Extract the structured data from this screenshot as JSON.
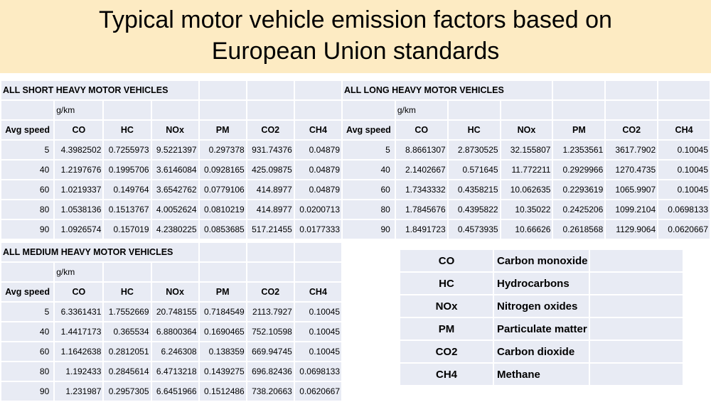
{
  "title_line1": "Typical motor vehicle emission factors based on",
  "title_line2": "European Union standards",
  "unit": "g/km",
  "columns": [
    "Avg speed",
    "CO",
    "HC",
    "NOx",
    "PM",
    "CO2",
    "CH4"
  ],
  "short": {
    "title": "ALL SHORT HEAVY MOTOR VEHICLES",
    "rows": [
      [
        "5",
        "4.3982502",
        "0.7255973",
        "9.5221397",
        "0.297378",
        "931.74376",
        "0.04879"
      ],
      [
        "40",
        "1.2197676",
        "0.1995706",
        "3.6146084",
        "0.0928165",
        "425.09875",
        "0.04879"
      ],
      [
        "60",
        "1.0219337",
        "0.149764",
        "3.6542762",
        "0.0779106",
        "414.8977",
        "0.04879"
      ],
      [
        "80",
        "1.0538136",
        "0.1513767",
        "4.0052624",
        "0.0810219",
        "414.8977",
        "0.0200713"
      ],
      [
        "90",
        "1.0926574",
        "0.157019",
        "4.2380225",
        "0.0853685",
        "517.21455",
        "0.0177333"
      ]
    ]
  },
  "long": {
    "title": "ALL LONG HEAVY MOTOR VEHICLES",
    "rows": [
      [
        "5",
        "8.8661307",
        "2.8730525",
        "32.155807",
        "1.2353561",
        "3617.7902",
        "0.10045"
      ],
      [
        "40",
        "2.1402667",
        "0.571645",
        "11.772211",
        "0.2929966",
        "1270.4735",
        "0.10045"
      ],
      [
        "60",
        "1.7343332",
        "0.4358215",
        "10.062635",
        "0.2293619",
        "1065.9907",
        "0.10045"
      ],
      [
        "80",
        "1.7845676",
        "0.4395822",
        "10.35022",
        "0.2425206",
        "1099.2104",
        "0.0698133"
      ],
      [
        "90",
        "1.8491723",
        "0.4573935",
        "10.66626",
        "0.2618568",
        "1129.9064",
        "0.0620667"
      ]
    ]
  },
  "medium": {
    "title": "ALL MEDIUM HEAVY MOTOR VEHICLES",
    "rows": [
      [
        "5",
        "6.3361431",
        "1.7552669",
        "20.748155",
        "0.7184549",
        "2113.7927",
        "0.10045"
      ],
      [
        "40",
        "1.4417173",
        "0.365534",
        "6.8800364",
        "0.1690465",
        "752.10598",
        "0.10045"
      ],
      [
        "60",
        "1.1642638",
        "0.2812051",
        "6.246308",
        "0.138359",
        "669.94745",
        "0.10045"
      ],
      [
        "80",
        "1.192433",
        "0.2845614",
        "6.4713218",
        "0.1439275",
        "696.82436",
        "0.0698133"
      ],
      [
        "90",
        "1.231987",
        "0.2957305",
        "6.6451966",
        "0.1512486",
        "738.20663",
        "0.0620667"
      ]
    ]
  },
  "legend": [
    {
      "abbr": "CO",
      "full": "Carbon monoxide"
    },
    {
      "abbr": "HC",
      "full": "Hydrocarbons"
    },
    {
      "abbr": "NOx",
      "full": "Nitrogen oxides"
    },
    {
      "abbr": "PM",
      "full": "Particulate matter"
    },
    {
      "abbr": "CO2",
      "full": "Carbon dioxide"
    },
    {
      "abbr": "CH4",
      "full": "Methane"
    }
  ],
  "colors": {
    "banner": "#fdebc3",
    "cell": "#e8ebf4"
  }
}
